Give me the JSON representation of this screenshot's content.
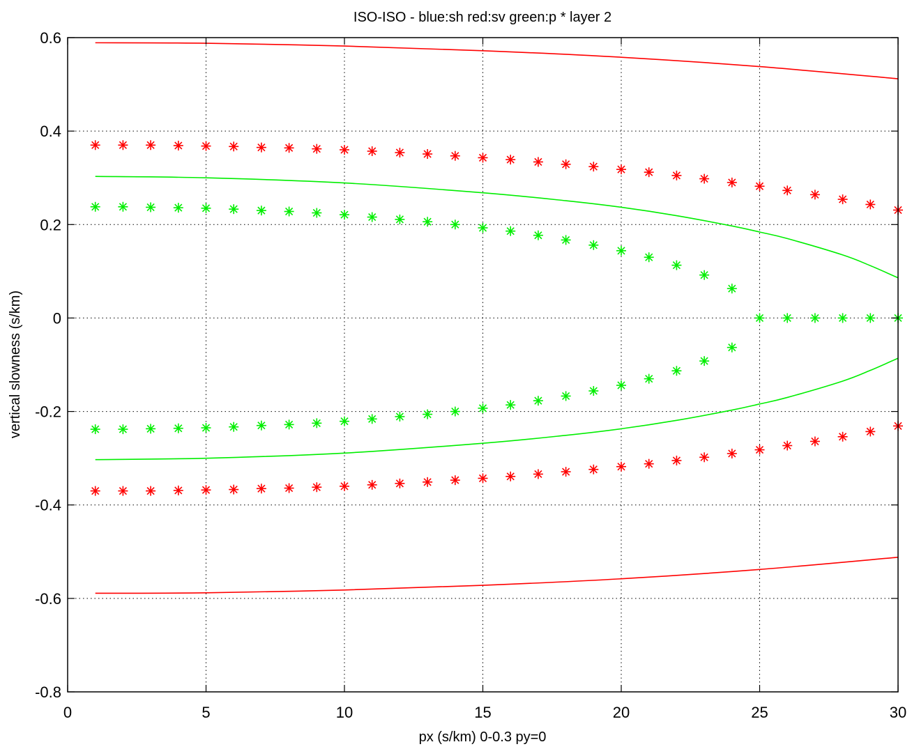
{
  "chart_data": {
    "type": "line",
    "title": "ISO-ISO - blue:sh red:sv green:p * layer 2",
    "xlabel": "px (s/km) 0-0.3 py=0",
    "ylabel": "vertical slowness (s/km)",
    "xlim": [
      0,
      30
    ],
    "ylim": [
      -0.8,
      0.6
    ],
    "xticks": [
      0,
      5,
      10,
      15,
      20,
      25,
      30
    ],
    "xtick_labels": [
      "0",
      "5",
      "10",
      "15",
      "20",
      "25",
      "30"
    ],
    "yticks": [
      -0.8,
      -0.6,
      -0.4,
      -0.2,
      0,
      0.2,
      0.4,
      0.6
    ],
    "ytick_labels": [
      "-0.8",
      "-0.6",
      "-0.4",
      "-0.2",
      "0",
      "0.2",
      "0.4",
      "0.6"
    ],
    "grid": true,
    "series": [
      {
        "kind": "line",
        "color": "#ff0000",
        "x": [
          1,
          5,
          10,
          15,
          20,
          25,
          30
        ],
        "y": [
          0.589,
          0.588,
          0.582,
          0.572,
          0.558,
          0.538,
          0.512
        ]
      },
      {
        "kind": "line",
        "color": "#ff0000",
        "x": [
          1,
          5,
          10,
          15,
          20,
          25,
          30
        ],
        "y": [
          -0.589,
          -0.588,
          -0.582,
          -0.572,
          -0.558,
          -0.538,
          -0.512
        ]
      },
      {
        "kind": "line",
        "color": "#00ee00",
        "x": [
          1,
          5,
          10,
          15,
          18,
          20,
          22,
          24,
          25,
          26,
          28,
          29,
          30
        ],
        "y": [
          0.303,
          0.3,
          0.289,
          0.268,
          0.251,
          0.237,
          0.219,
          0.197,
          0.184,
          0.17,
          0.135,
          0.112,
          0.086
        ]
      },
      {
        "kind": "line",
        "color": "#00ee00",
        "x": [
          1,
          5,
          10,
          15,
          18,
          20,
          22,
          24,
          25,
          26,
          28,
          29,
          30
        ],
        "y": [
          -0.303,
          -0.3,
          -0.289,
          -0.268,
          -0.251,
          -0.237,
          -0.219,
          -0.197,
          -0.184,
          -0.17,
          -0.135,
          -0.112,
          -0.086
        ]
      },
      {
        "kind": "markers",
        "color": "#ff0000",
        "x": [
          1,
          2,
          3,
          4,
          5,
          6,
          7,
          8,
          9,
          10,
          11,
          12,
          13,
          14,
          15,
          16,
          17,
          18,
          19,
          20,
          21,
          22,
          23,
          24,
          25,
          26,
          27,
          28,
          29,
          30
        ],
        "y": [
          0.37,
          0.37,
          0.37,
          0.369,
          0.368,
          0.367,
          0.365,
          0.364,
          0.362,
          0.36,
          0.357,
          0.354,
          0.351,
          0.347,
          0.343,
          0.339,
          0.334,
          0.329,
          0.324,
          0.318,
          0.312,
          0.305,
          0.298,
          0.29,
          0.282,
          0.273,
          0.264,
          0.254,
          0.243,
          0.231
        ]
      },
      {
        "kind": "markers",
        "color": "#ff0000",
        "x": [
          1,
          2,
          3,
          4,
          5,
          6,
          7,
          8,
          9,
          10,
          11,
          12,
          13,
          14,
          15,
          16,
          17,
          18,
          19,
          20,
          21,
          22,
          23,
          24,
          25,
          26,
          27,
          28,
          29,
          30
        ],
        "y": [
          -0.37,
          -0.37,
          -0.37,
          -0.369,
          -0.368,
          -0.367,
          -0.365,
          -0.364,
          -0.362,
          -0.36,
          -0.357,
          -0.354,
          -0.351,
          -0.347,
          -0.343,
          -0.339,
          -0.334,
          -0.329,
          -0.324,
          -0.318,
          -0.312,
          -0.305,
          -0.298,
          -0.29,
          -0.282,
          -0.273,
          -0.264,
          -0.254,
          -0.243,
          -0.231
        ]
      },
      {
        "kind": "markers",
        "color": "#00ee00",
        "x": [
          1,
          2,
          3,
          4,
          5,
          6,
          7,
          8,
          9,
          10,
          11,
          12,
          13,
          14,
          15,
          16,
          17,
          18,
          19,
          20,
          21,
          22,
          23,
          24,
          25,
          26,
          27,
          28,
          29,
          30
        ],
        "y": [
          0.238,
          0.238,
          0.237,
          0.236,
          0.235,
          0.233,
          0.23,
          0.228,
          0.225,
          0.221,
          0.216,
          0.211,
          0.206,
          0.2,
          0.193,
          0.186,
          0.177,
          0.167,
          0.156,
          0.144,
          0.13,
          0.113,
          0.092,
          0.063,
          0,
          0,
          0,
          0,
          0,
          0
        ]
      },
      {
        "kind": "markers",
        "color": "#00ee00",
        "x": [
          1,
          2,
          3,
          4,
          5,
          6,
          7,
          8,
          9,
          10,
          11,
          12,
          13,
          14,
          15,
          16,
          17,
          18,
          19,
          20,
          21,
          22,
          23,
          24
        ],
        "y": [
          -0.238,
          -0.238,
          -0.237,
          -0.236,
          -0.235,
          -0.233,
          -0.23,
          -0.228,
          -0.225,
          -0.221,
          -0.216,
          -0.211,
          -0.206,
          -0.2,
          -0.193,
          -0.186,
          -0.177,
          -0.167,
          -0.156,
          -0.144,
          -0.13,
          -0.113,
          -0.092,
          -0.063
        ]
      }
    ]
  }
}
